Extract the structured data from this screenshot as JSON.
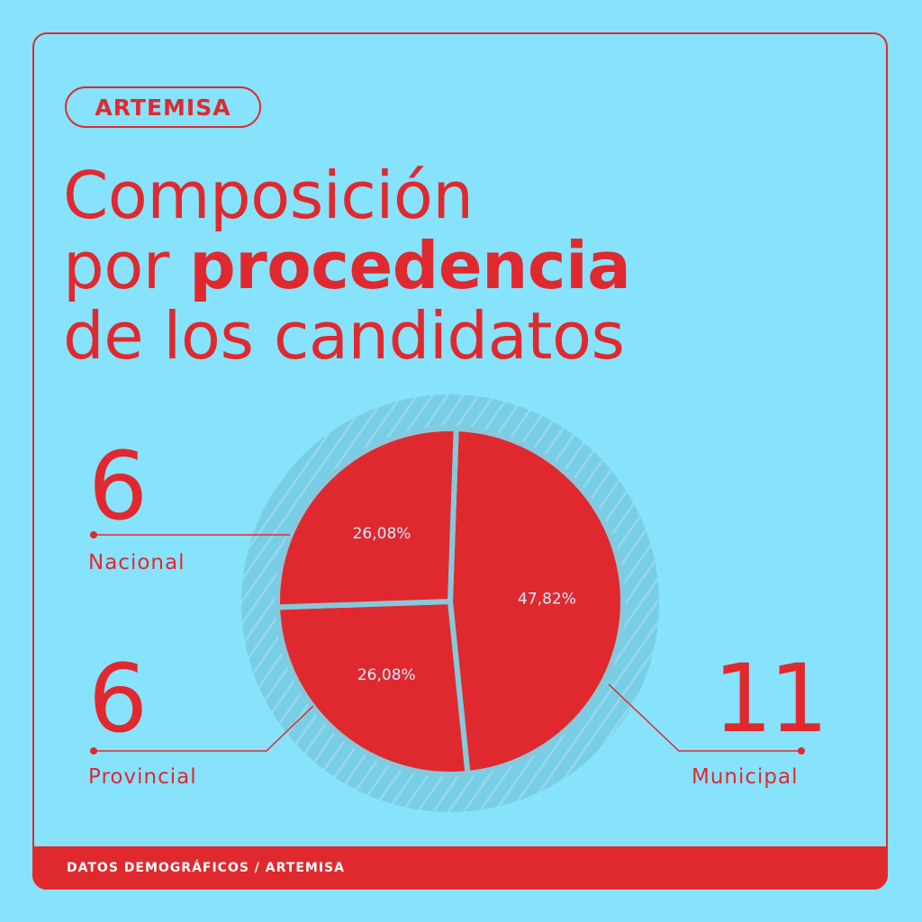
{
  "tag": "ARTEMISA",
  "title": {
    "line1": "Composición",
    "line2_prefix": "por",
    "line2_bold": "procedencia",
    "line3": "de los candidatos"
  },
  "stats": {
    "nacional": {
      "count": "6",
      "label": "Nacional"
    },
    "provincial": {
      "count": "6",
      "label": "Provincial"
    },
    "municipal": {
      "count": "11",
      "label": "Municipal"
    }
  },
  "footer": "DATOS DEMOGRÁFICOS / ARTEMISA",
  "colors": {
    "background": "#86e3fb",
    "accent": "#e0292f",
    "slice_text": "#cdefff"
  },
  "chart_data": {
    "type": "pie",
    "categories": [
      "Municipal",
      "Provincial",
      "Nacional"
    ],
    "values": [
      47.82,
      26.08,
      26.08
    ],
    "counts": [
      11,
      6,
      6
    ],
    "labels": [
      "47,82%",
      "26,08%",
      "26,08%"
    ]
  }
}
